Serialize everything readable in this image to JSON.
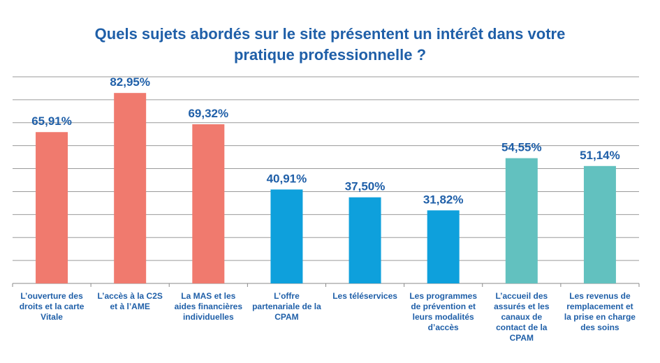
{
  "chart_data": {
    "type": "bar",
    "title_lines": [
      "Quels sujets abordés sur le site présentent un intérêt dans votre",
      "pratique professionnelle ?"
    ],
    "categories": [
      [
        "L’ouverture des",
        "droits et la carte",
        "Vitale"
      ],
      [
        "L’accès à la C2S",
        "et à l’AME"
      ],
      [
        "La MAS et les",
        "aides financières",
        "individuelles"
      ],
      [
        "L’offre",
        "partenariale de la",
        "CPAM"
      ],
      [
        "Les téléservices"
      ],
      [
        "Les programmes",
        "de prévention et",
        "leurs modalités",
        "d’accès"
      ],
      [
        "L’accueil des",
        "assurés et les",
        "canaux de",
        "contact de la",
        "CPAM"
      ],
      [
        "Les revenus de",
        "remplacement et",
        "la prise en charge",
        "des soins"
      ]
    ],
    "values": [
      65.91,
      82.95,
      69.32,
      40.91,
      37.5,
      31.82,
      54.55,
      51.14
    ],
    "value_labels": [
      "65,91%",
      "82,95%",
      "69,32%",
      "40,91%",
      "37,50%",
      "31,82%",
      "54,55%",
      "51,14%"
    ],
    "colors": [
      "#f07a6e",
      "#f07a6e",
      "#f07a6e",
      "#0ea0dc",
      "#0ea0dc",
      "#0ea0dc",
      "#62c1bf",
      "#62c1bf"
    ],
    "ylim": [
      0,
      90
    ],
    "grid": true,
    "xlabel": "",
    "ylabel": ""
  }
}
